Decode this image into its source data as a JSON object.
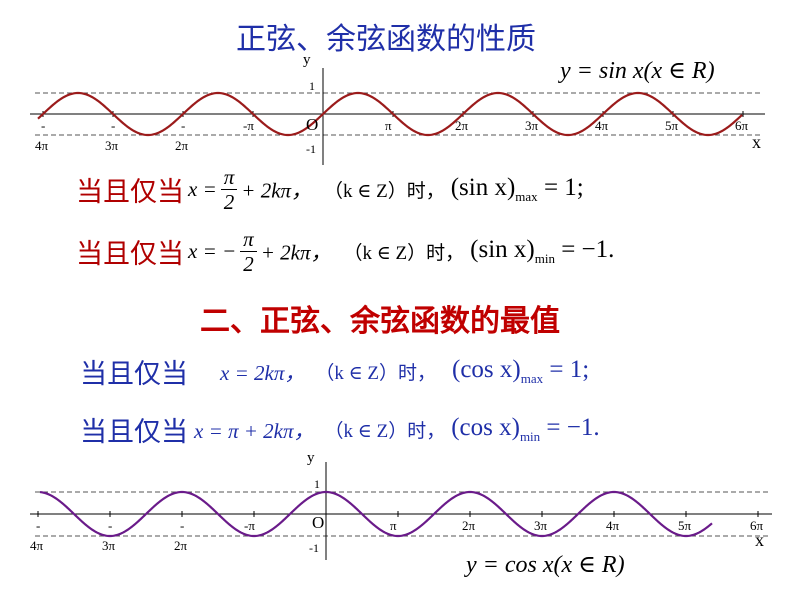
{
  "title1": "正弦、余弦函数的性质",
  "title2": "二、正弦、余弦函数的最值",
  "sin_graph": {
    "equation": "y = sin x(x ∈ R)",
    "y_axis_label": "y",
    "x_axis_label": "x",
    "origin_label": "O",
    "y_tick_top": "1",
    "y_tick_bottom": "-1",
    "neg_tick_labels": [
      "-",
      "-",
      "-",
      "-π"
    ],
    "neg_tick_sublabels": [
      "4π",
      "3π",
      "2π"
    ],
    "pos_tick_labels": [
      "π",
      "2π",
      "3π",
      "4π",
      "5π",
      "6π"
    ],
    "curve_color": "#9b1b1b"
  },
  "cos_graph": {
    "equation": "y = cos x(x ∈ R)",
    "y_axis_label": "y",
    "x_axis_label": "x",
    "origin_label": "O",
    "y_tick_top": "1",
    "y_tick_bottom": "-1",
    "neg_tick_labels": [
      "-",
      "-",
      "-",
      "-π"
    ],
    "neg_tick_sublabels": [
      "4π",
      "3π",
      "2π"
    ],
    "pos_tick_labels": [
      "π",
      "2π",
      "3π",
      "4π",
      "5π",
      "6π"
    ],
    "curve_color": "#6a1b8a"
  },
  "sin_rules": {
    "prefix": "当且仅当",
    "max_lhs": "x =",
    "max_frac_num": "π",
    "max_frac_den": "2",
    "max_tail": "+ 2kπ，",
    "cond": "（k ∈ Z）时，",
    "max_result_fn": "(sin x)",
    "max_result_sub": "max",
    "max_result_val": "= 1;",
    "min_lhs": "x = −",
    "min_frac_num": "π",
    "min_frac_den": "2",
    "min_tail": "+ 2kπ，",
    "min_result_fn": "(sin x)",
    "min_result_sub": "min",
    "min_result_val": "= −1."
  },
  "cos_rules": {
    "prefix": "当且仅当",
    "max_expr": "x = 2kπ，",
    "cond": "（k ∈ Z）时，",
    "max_result_fn": "(cos x)",
    "max_result_sub": "max",
    "max_result_val": "= 1;",
    "min_expr": "x = π + 2kπ，",
    "min_result_fn": "(cos x)",
    "min_result_sub": "min",
    "min_result_val": "= −1."
  }
}
